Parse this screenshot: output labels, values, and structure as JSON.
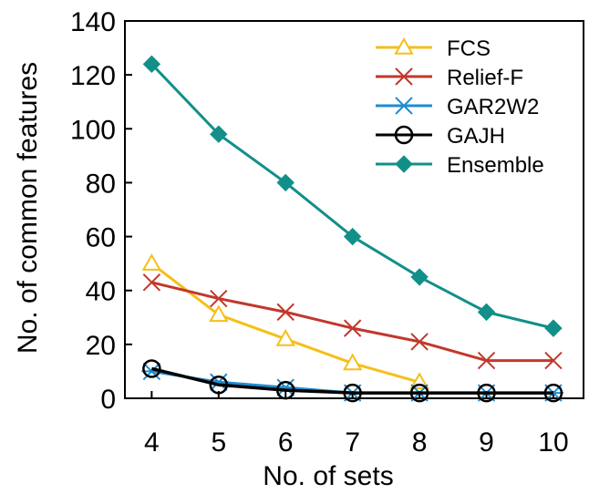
{
  "chart_data": {
    "type": "line",
    "xlabel": "No. of sets",
    "ylabel": "No. of common features",
    "x": [
      4,
      5,
      6,
      7,
      8,
      9,
      10
    ],
    "xlim": [
      3.6,
      10.45
    ],
    "ylim": [
      0,
      140
    ],
    "xticks": [
      "4",
      "5",
      "6",
      "7",
      "8",
      "9",
      "10"
    ],
    "yticks": [
      "0",
      "20",
      "40",
      "60",
      "80",
      "100",
      "120",
      "140"
    ],
    "grid": false,
    "legend_position": "top-right",
    "series": [
      {
        "name": "FCS",
        "color": "#f5bf1a",
        "marker": "triangle-open",
        "values": [
          50,
          31,
          22,
          13,
          6,
          null,
          null
        ]
      },
      {
        "name": "Relief-F",
        "color": "#c0392b",
        "marker": "x",
        "values": [
          43,
          37,
          32,
          26,
          21,
          14,
          14
        ]
      },
      {
        "name": "GAR2W2",
        "color": "#1f8dcf",
        "marker": "asterisk",
        "values": [
          10,
          6,
          4,
          2,
          2,
          2,
          2
        ]
      },
      {
        "name": "GAJH",
        "color": "#000000",
        "marker": "circle-open",
        "values": [
          11,
          5,
          3,
          2,
          2,
          2,
          2
        ]
      },
      {
        "name": "Ensemble",
        "color": "#138f8a",
        "marker": "diamond",
        "values": [
          124,
          98,
          80,
          60,
          45,
          32,
          26
        ]
      }
    ]
  }
}
